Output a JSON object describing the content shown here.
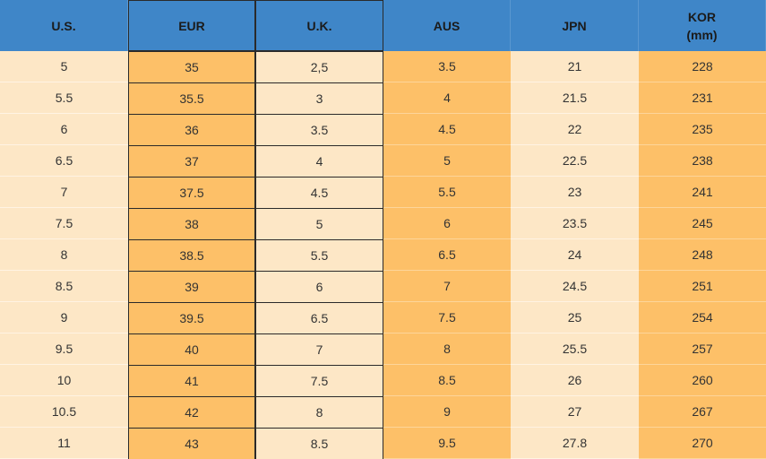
{
  "table": {
    "header": [
      "U.S.",
      "EUR",
      "U.K.",
      "AUS",
      "JPN",
      "KOR\n(mm)"
    ],
    "rows": [
      [
        "5",
        "35",
        "2,5",
        "3.5",
        "21",
        "228"
      ],
      [
        "5.5",
        "35.5",
        "3",
        "4",
        "21.5",
        "231"
      ],
      [
        "6",
        "36",
        "3.5",
        "4.5",
        "22",
        "235"
      ],
      [
        "6.5",
        "37",
        "4",
        "5",
        "22.5",
        "238"
      ],
      [
        "7",
        "37.5",
        "4.5",
        "5.5",
        "23",
        "241"
      ],
      [
        "7.5",
        "38",
        "5",
        "6",
        "23.5",
        "245"
      ],
      [
        "8",
        "38.5",
        "5.5",
        "6.5",
        "24",
        "248"
      ],
      [
        "8.5",
        "39",
        "6",
        "7",
        "24.5",
        "251"
      ],
      [
        "9",
        "39.5",
        "6.5",
        "7.5",
        "25",
        "254"
      ],
      [
        "9.5",
        "40",
        "7",
        "8",
        "25.5",
        "257"
      ],
      [
        "10",
        "41",
        "7.5",
        "8.5",
        "26",
        "260"
      ],
      [
        "10.5",
        "42",
        "8",
        "9",
        "27",
        "267"
      ],
      [
        "11",
        "43",
        "8.5",
        "9.5",
        "27.8",
        "270"
      ]
    ]
  }
}
